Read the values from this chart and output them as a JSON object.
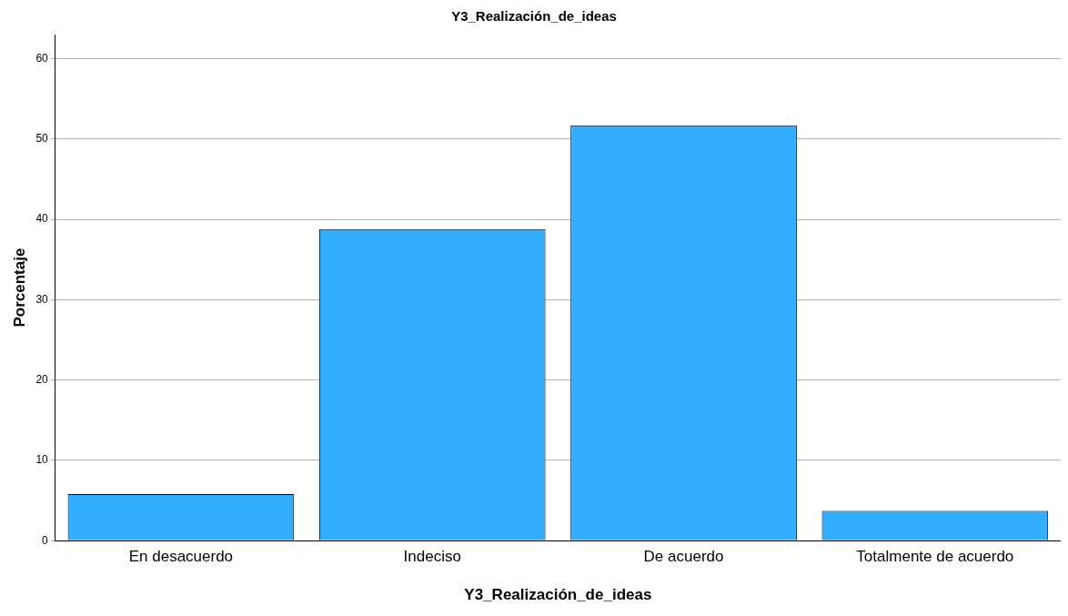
{
  "chart_data": {
    "type": "bar",
    "title": "Y3_Realización_de_ideas",
    "xlabel": "Y3_Realización_de_ideas",
    "ylabel": "Porcentaje",
    "categories": [
      "En desacuerdo",
      "Indeciso",
      "De acuerdo",
      "Totalmente de acuerdo"
    ],
    "values": [
      5.8,
      38.8,
      51.7,
      3.7
    ],
    "color": "#33adff",
    "ylim": [
      0,
      63
    ],
    "yticks": [
      0,
      10,
      20,
      30,
      40,
      50,
      60
    ],
    "grid": "y",
    "legend": false
  }
}
